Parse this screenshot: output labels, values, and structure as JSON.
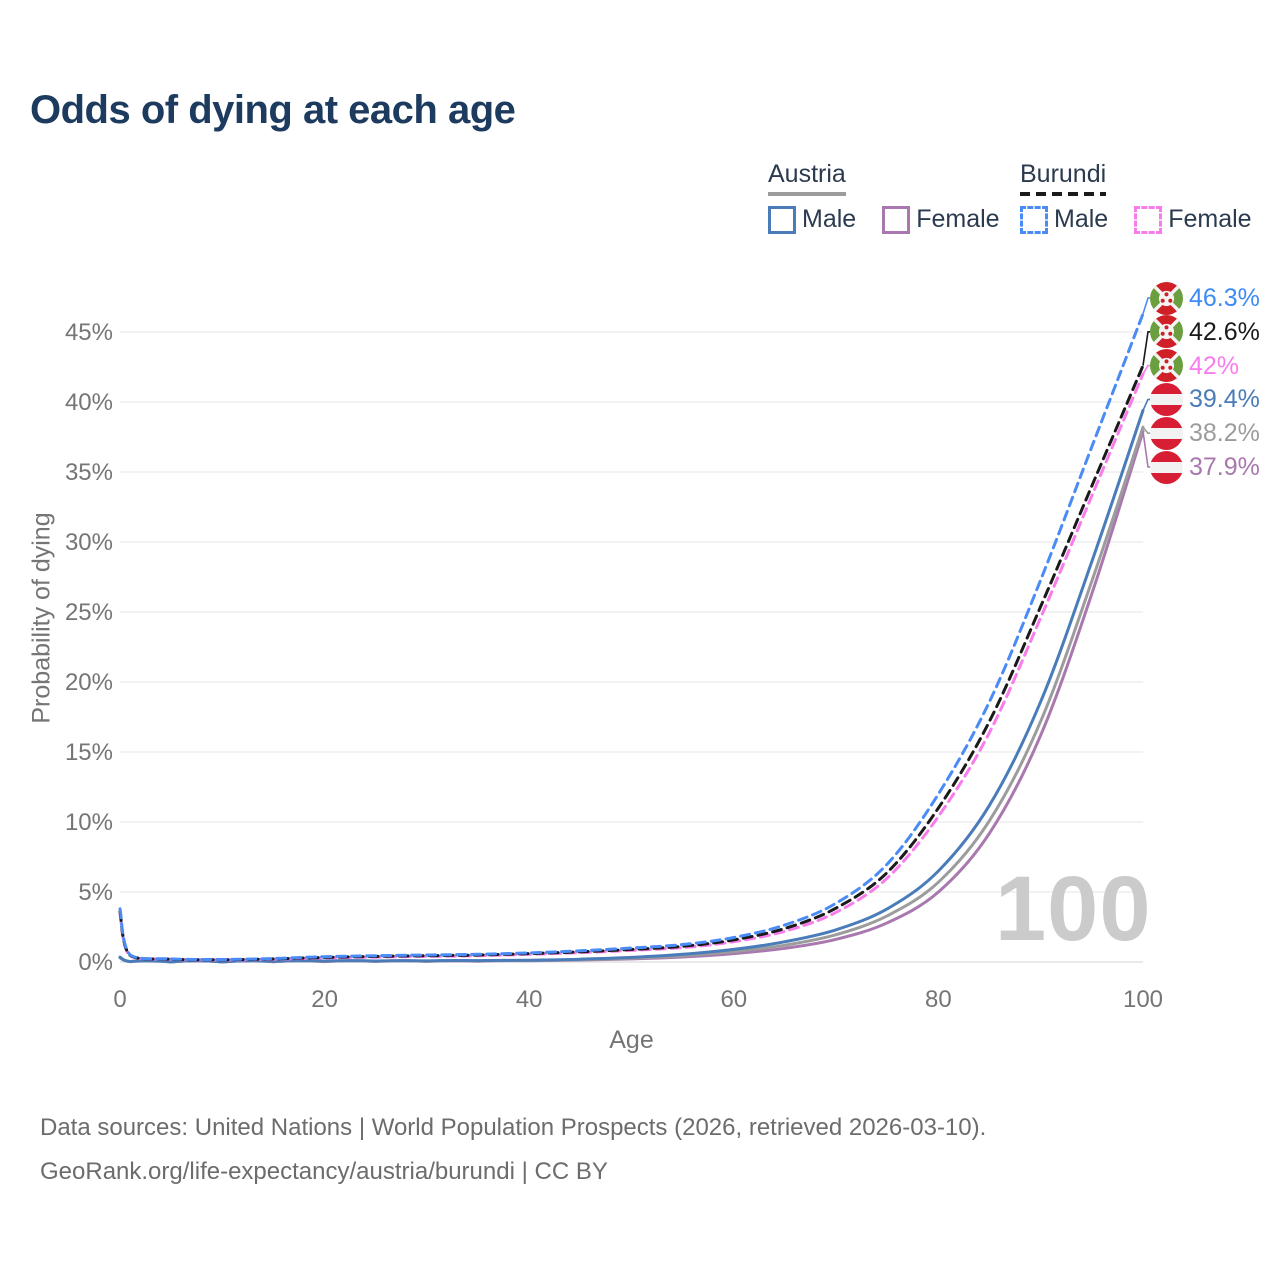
{
  "title": "Odds of dying at each age",
  "legend": {
    "groups": [
      {
        "country": "Austria",
        "line_style": "solid",
        "underline_color": "#9c9c9c",
        "items": [
          {
            "label": "Male",
            "color": "#4a7cba"
          },
          {
            "label": "Female",
            "color": "#a878ae"
          }
        ]
      },
      {
        "country": "Burundi",
        "line_style": "dashed",
        "underline_color": "#1a1a1a",
        "items": [
          {
            "label": "Male",
            "color": "#4a8bf5"
          },
          {
            "label": "Female",
            "color": "#f87cec"
          }
        ]
      }
    ]
  },
  "chart_data": {
    "type": "line",
    "title": "Odds of dying at each age",
    "xlabel": "Age",
    "ylabel": "Probability of dying",
    "x_ticks": [
      0,
      20,
      40,
      60,
      80,
      100
    ],
    "y_ticks_percent": [
      0,
      5,
      10,
      15,
      20,
      25,
      30,
      35,
      40,
      45
    ],
    "xlim": [
      0,
      100
    ],
    "ylim_percent": [
      0,
      47
    ],
    "grid": true,
    "watermark": "100",
    "ages": [
      0,
      1,
      5,
      10,
      15,
      20,
      25,
      30,
      35,
      40,
      45,
      50,
      55,
      60,
      65,
      70,
      75,
      80,
      85,
      90,
      95,
      100
    ],
    "series": [
      {
        "name": "Burundi Male",
        "country": "Burundi",
        "sex": "Male",
        "style": "dashed",
        "flag": "burundi",
        "color": "#4a8bf5",
        "label_color": "#3d8af7",
        "end_label": "46.3%",
        "values_percent": [
          3.8,
          0.5,
          0.22,
          0.18,
          0.25,
          0.38,
          0.45,
          0.5,
          0.55,
          0.65,
          0.8,
          1.0,
          1.25,
          1.75,
          2.65,
          4.2,
          7.0,
          12.0,
          18.6,
          27.3,
          36.8,
          46.3
        ]
      },
      {
        "name": "Burundi Both sexes",
        "country": "Burundi",
        "sex": "Both",
        "style": "dashed",
        "flag": "burundi",
        "color": "#1a1a1a",
        "label_color": "#1a1a1a",
        "end_label": "42.6%",
        "values_percent": [
          3.6,
          0.47,
          0.2,
          0.16,
          0.22,
          0.33,
          0.4,
          0.45,
          0.5,
          0.6,
          0.73,
          0.9,
          1.12,
          1.58,
          2.4,
          3.85,
          6.4,
          11.0,
          17.2,
          25.4,
          34.0,
          42.6
        ]
      },
      {
        "name": "Burundi Female",
        "country": "Burundi",
        "sex": "Female",
        "style": "dashed",
        "flag": "burundi",
        "color": "#f87cec",
        "label_color": "#f87cec",
        "end_label": "42%",
        "values_percent": [
          3.4,
          0.44,
          0.19,
          0.15,
          0.2,
          0.29,
          0.35,
          0.4,
          0.45,
          0.55,
          0.67,
          0.83,
          1.03,
          1.45,
          2.2,
          3.55,
          6.0,
          10.4,
          16.4,
          24.6,
          33.3,
          42.0
        ]
      },
      {
        "name": "Austria Male",
        "country": "Austria",
        "sex": "Male",
        "style": "solid",
        "flag": "austria",
        "color": "#4a7cba",
        "label_color": "#4a7cba",
        "end_label": "39.4%",
        "values_percent": [
          0.35,
          0.03,
          0.01,
          0.01,
          0.04,
          0.07,
          0.07,
          0.08,
          0.1,
          0.13,
          0.2,
          0.33,
          0.55,
          0.9,
          1.45,
          2.3,
          3.8,
          6.5,
          11.2,
          18.6,
          28.6,
          39.4
        ]
      },
      {
        "name": "Austria Both sexes",
        "country": "Austria",
        "sex": "Both",
        "style": "solid",
        "flag": "austria",
        "color": "#9c9c9c",
        "label_color": "#9c9c9c",
        "end_label": "38.2%",
        "values_percent": [
          0.32,
          0.027,
          0.01,
          0.01,
          0.03,
          0.05,
          0.05,
          0.06,
          0.08,
          0.11,
          0.17,
          0.27,
          0.45,
          0.75,
          1.2,
          1.95,
          3.3,
          5.7,
          10.1,
          17.2,
          27.2,
          38.2
        ]
      },
      {
        "name": "Austria Female",
        "country": "Austria",
        "sex": "Female",
        "style": "solid",
        "flag": "austria",
        "color": "#a878ae",
        "label_color": "#a878ae",
        "end_label": "37.9%",
        "values_percent": [
          0.3,
          0.024,
          0.008,
          0.008,
          0.02,
          0.03,
          0.035,
          0.045,
          0.06,
          0.09,
          0.14,
          0.22,
          0.36,
          0.6,
          0.98,
          1.62,
          2.8,
          5.0,
          9.2,
          16.2,
          26.3,
          37.9
        ]
      }
    ],
    "flag_colors": {
      "austria_red": "#d81e34",
      "austria_white": "#f2f2f2",
      "burundi_red": "#cf2027",
      "burundi_green": "#6a9e3e",
      "burundi_white": "#f4f4f4"
    },
    "grid_color": "#e9e9e9",
    "axis_text_color": "#757575"
  },
  "footer": {
    "line1": "Data sources: United Nations | World Population Prospects (2026, retrieved 2026-03-10).",
    "line2": "GeoRank.org/life-expectancy/austria/burundi | CC BY"
  }
}
